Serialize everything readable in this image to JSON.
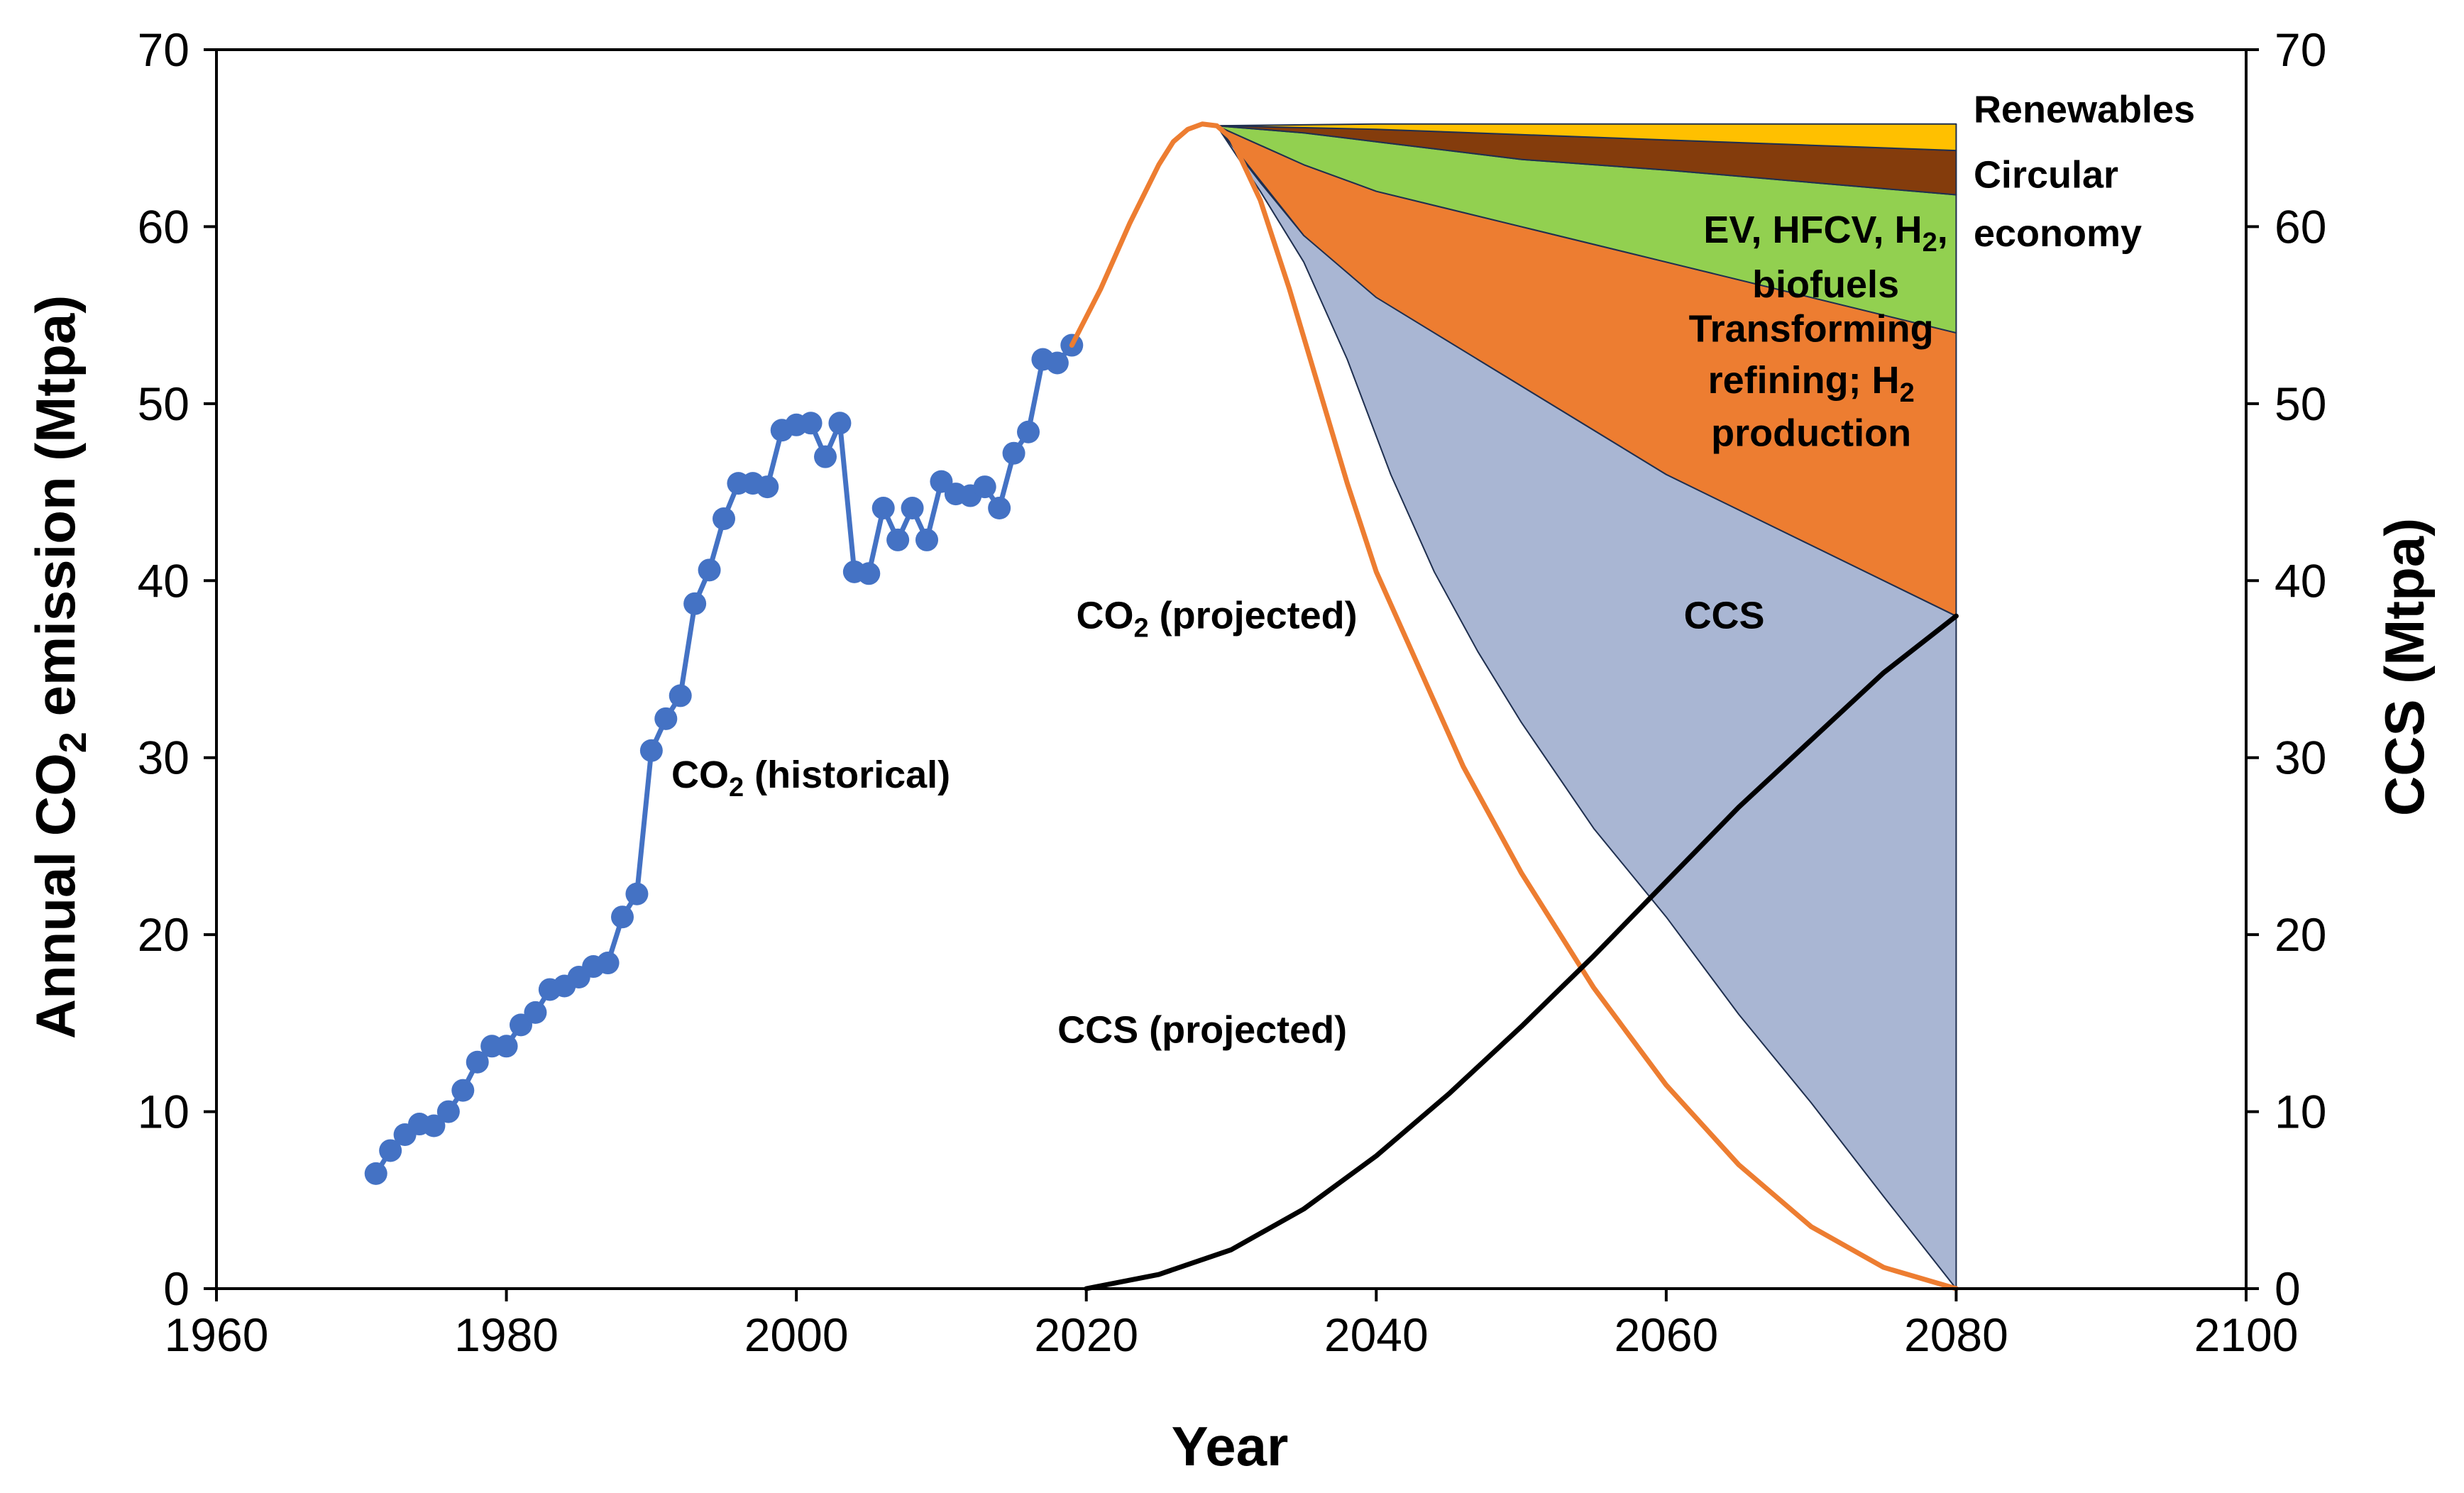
{
  "chart_data": {
    "type": "area",
    "title": "",
    "xlabel": "Year",
    "ylabel": "Annual CO2 emission (Mtpa)",
    "y2label": "CCS (Mtpa)",
    "xlim": [
      1960,
      2100
    ],
    "ylim": [
      0,
      70
    ],
    "y2lim": [
      0,
      70
    ],
    "x_ticks": [
      1960,
      1980,
      2000,
      2020,
      2040,
      2060,
      2080,
      2100
    ],
    "y_ticks": [
      0,
      10,
      20,
      30,
      40,
      50,
      60,
      70
    ],
    "y2_ticks": [
      0,
      10,
      20,
      30,
      40,
      50,
      60,
      70
    ],
    "grid": false,
    "series": [
      {
        "name": "CO2 (historical)",
        "kind": "line-markers",
        "color": "#4472C4",
        "x": [
          1971,
          1972,
          1973,
          1974,
          1975,
          1976,
          1977,
          1978,
          1979,
          1980,
          1981,
          1982,
          1983,
          1984,
          1985,
          1986,
          1987,
          1988,
          1989,
          1990,
          1991,
          1992,
          1993,
          1994,
          1995,
          1996,
          1997,
          1998,
          1999,
          2000,
          2001,
          2002,
          2003,
          2004,
          2005,
          2006,
          2007,
          2008,
          2009,
          2010,
          2011,
          2012,
          2013,
          2014,
          2015,
          2016,
          2017,
          2018,
          2019
        ],
        "y": [
          6.5,
          7.8,
          8.7,
          9.3,
          9.2,
          10.0,
          11.2,
          12.8,
          13.7,
          13.7,
          14.9,
          15.6,
          16.9,
          17.1,
          17.6,
          18.2,
          18.4,
          21.0,
          22.3,
          30.4,
          32.2,
          33.5,
          38.7,
          40.6,
          43.5,
          45.5,
          45.5,
          45.3,
          48.5,
          48.8,
          48.9,
          47.0,
          48.9,
          40.5,
          40.4,
          44.1,
          42.3,
          44.1,
          42.3,
          45.6,
          44.9,
          44.8,
          45.3,
          44.1,
          47.2,
          48.4,
          52.5,
          52.3,
          53.3
        ]
      },
      {
        "name": "CO2 (projected)",
        "kind": "line",
        "color": "#ED7D31",
        "x": [
          2019,
          2021,
          2023,
          2025,
          2026,
          2027,
          2028,
          2029,
          2030,
          2032,
          2034,
          2036,
          2038,
          2040,
          2043,
          2046,
          2050,
          2055,
          2060,
          2065,
          2070,
          2075,
          2080
        ],
        "y": [
          53.3,
          56.5,
          60.2,
          63.5,
          64.8,
          65.5,
          65.8,
          65.7,
          65.0,
          61.5,
          56.5,
          51.0,
          45.5,
          40.5,
          35.0,
          29.5,
          23.5,
          17.0,
          11.5,
          7.0,
          3.5,
          1.2,
          0.0
        ]
      },
      {
        "name": "CCS (projected)",
        "kind": "line",
        "color": "#000000",
        "x": [
          2020,
          2025,
          2030,
          2035,
          2040,
          2045,
          2050,
          2055,
          2060,
          2065,
          2070,
          2075,
          2080
        ],
        "y": [
          0.0,
          0.8,
          2.2,
          4.5,
          7.5,
          11.0,
          14.8,
          18.8,
          23.0,
          27.2,
          31.0,
          34.8,
          38.0
        ]
      }
    ],
    "areas": [
      {
        "name": "CCS",
        "color": "#A9B6D3",
        "x": [
          2029,
          2032,
          2035,
          2038,
          2041,
          2044,
          2047,
          2050,
          2055,
          2060,
          2065,
          2070,
          2075,
          2080
        ],
        "lower": [
          65.7,
          62.0,
          58.0,
          52.5,
          46.0,
          40.5,
          36.0,
          32.0,
          26.0,
          21.0,
          15.5,
          10.5,
          5.2,
          0.0
        ],
        "upper": [
          65.7,
          62.5,
          59.5,
          57.5,
          56.0,
          54.5,
          52.5,
          51.0,
          48.5,
          46.0,
          44.0,
          42.0,
          40.0,
          38.0
        ]
      },
      {
        "name": "Transforming refining; H2 production",
        "color": "#ED7D31",
        "x": [
          2029,
          2035,
          2040,
          2050,
          2060,
          2070,
          2080
        ],
        "lower": [
          65.7,
          59.5,
          56.0,
          51.0,
          46.0,
          42.0,
          38.0
        ],
        "upper": [
          65.7,
          63.5,
          62.0,
          60.0,
          58.0,
          56.0,
          54.0
        ]
      },
      {
        "name": "EV, HFCV, H2, biofuels",
        "color": "#92D050",
        "x": [
          2029,
          2035,
          2040,
          2050,
          2060,
          2070,
          2080
        ],
        "lower": [
          65.7,
          63.5,
          62.0,
          60.0,
          58.0,
          56.0,
          54.0
        ],
        "upper": [
          65.7,
          65.3,
          64.8,
          63.8,
          63.2,
          62.5,
          61.8
        ]
      },
      {
        "name": "Circular economy",
        "color": "#843C0C",
        "x": [
          2029,
          2035,
          2040,
          2050,
          2060,
          2070,
          2080
        ],
        "lower": [
          65.7,
          65.3,
          64.8,
          63.8,
          63.2,
          62.5,
          61.8
        ],
        "upper": [
          65.7,
          65.7,
          65.5,
          65.2,
          64.9,
          64.6,
          64.3
        ]
      },
      {
        "name": "Renewables",
        "color": "#FFC000",
        "x": [
          2029,
          2040,
          2050,
          2060,
          2070,
          2080
        ],
        "lower": [
          65.7,
          65.5,
          65.2,
          64.9,
          64.6,
          64.3
        ],
        "upper": [
          65.7,
          65.8,
          65.8,
          65.8,
          65.8,
          65.8
        ]
      }
    ],
    "annotations": [
      {
        "id": "historical",
        "parts": [
          {
            "t": "CO"
          },
          {
            "t": "2",
            "sub": true
          },
          {
            "t": " (historical)"
          }
        ],
        "x": 2001,
        "y": 28.3,
        "anchor": "middle"
      },
      {
        "id": "projected",
        "parts": [
          {
            "t": "CO"
          },
          {
            "t": "2",
            "sub": true
          },
          {
            "t": " (projected)"
          }
        ],
        "x": 2029,
        "y": 37.3,
        "anchor": "middle"
      },
      {
        "id": "ccs-area",
        "parts": [
          {
            "t": "CCS"
          }
        ],
        "x": 2064,
        "y": 37.3,
        "anchor": "middle"
      },
      {
        "id": "ccs-projected",
        "parts": [
          {
            "t": "CCS (projected)"
          }
        ],
        "x": 2028,
        "y": 13.9,
        "anchor": "middle"
      },
      {
        "id": "transforming-1",
        "parts": [
          {
            "t": "Transforming"
          }
        ],
        "x": 2070,
        "y": 53.5,
        "anchor": "middle"
      },
      {
        "id": "transforming-2",
        "parts": [
          {
            "t": "refining; H"
          },
          {
            "t": "2",
            "sub": true
          }
        ],
        "x": 2070,
        "y": 50.6,
        "anchor": "middle"
      },
      {
        "id": "transforming-3",
        "parts": [
          {
            "t": "production"
          }
        ],
        "x": 2070,
        "y": 47.6,
        "anchor": "middle"
      },
      {
        "id": "ev-1",
        "parts": [
          {
            "t": "EV, HFCV, H"
          },
          {
            "t": "2",
            "sub": true
          },
          {
            "t": ","
          }
        ],
        "x": 2071,
        "y": 59.1,
        "anchor": "middle"
      },
      {
        "id": "ev-2",
        "parts": [
          {
            "t": "biofuels"
          }
        ],
        "x": 2071,
        "y": 56.0,
        "anchor": "middle"
      },
      {
        "id": "renewables",
        "parts": [
          {
            "t": "Renewables"
          }
        ],
        "x": 2081.2,
        "y": 65.9,
        "anchor": "start"
      },
      {
        "id": "circular-1",
        "parts": [
          {
            "t": "Circular"
          }
        ],
        "x": 2081.2,
        "y": 62.2,
        "anchor": "start"
      },
      {
        "id": "circular-2",
        "parts": [
          {
            "t": "economy"
          }
        ],
        "x": 2081.2,
        "y": 58.9,
        "anchor": "start"
      }
    ]
  }
}
